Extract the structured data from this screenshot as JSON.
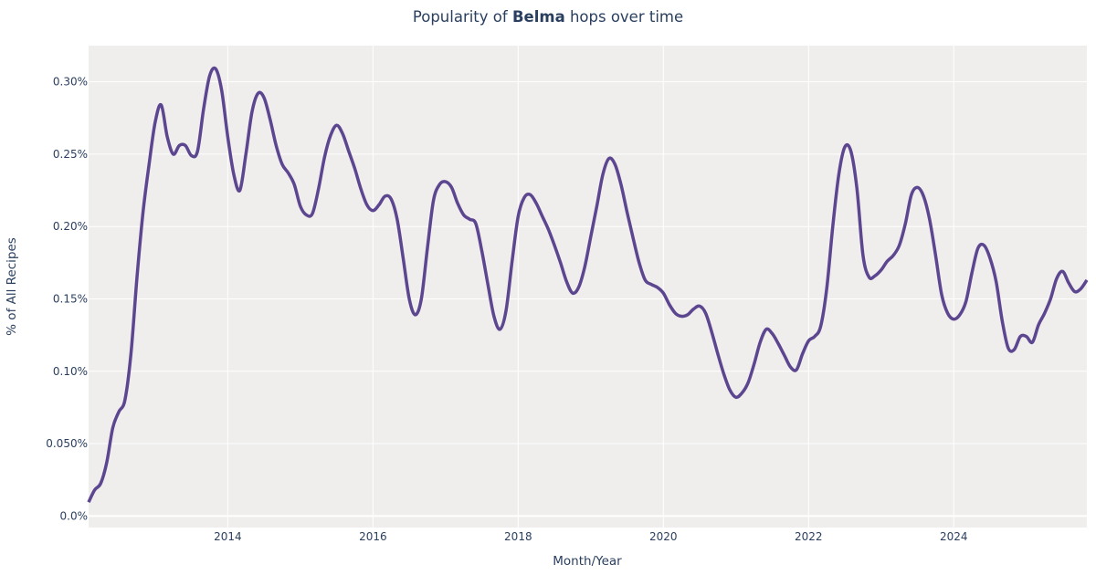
{
  "chart_data": {
    "type": "line",
    "title": {
      "prefix": "Popularity of ",
      "bold": "Belma",
      "suffix": " hops over time"
    },
    "xlabel": "Month/Year",
    "ylabel": "% of All Recipes",
    "xlim": [
      "2012-02",
      "2025-11"
    ],
    "ylim": [
      -0.008,
      0.325
    ],
    "x_ticks": [
      "2014",
      "2016",
      "2018",
      "2020",
      "2022",
      "2024"
    ],
    "y_ticks": [
      0,
      0.05,
      0.1,
      0.15,
      0.2,
      0.25,
      0.3
    ],
    "y_tick_labels": [
      "0.0%",
      "0.050%",
      "0.10%",
      "0.15%",
      "0.20%",
      "0.25%",
      "0.30%"
    ],
    "grid": true,
    "colors": {
      "line": "#5d4690",
      "plot_bg": "#efeeec",
      "grid": "#ffffff",
      "text": "#2a3f5f"
    },
    "series": [
      {
        "start": "2012-02",
        "frequency": "monthly",
        "values": [
          0.0095,
          0.018,
          0.0225,
          0.037,
          0.061,
          0.072,
          0.08,
          0.112,
          0.165,
          0.21,
          0.243,
          0.272,
          0.284,
          0.262,
          0.25,
          0.256,
          0.256,
          0.249,
          0.252,
          0.281,
          0.304,
          0.309,
          0.294,
          0.262,
          0.236,
          0.225,
          0.25,
          0.279,
          0.292,
          0.289,
          0.274,
          0.256,
          0.243,
          0.237,
          0.229,
          0.214,
          0.208,
          0.209,
          0.226,
          0.248,
          0.263,
          0.27,
          0.264,
          0.252,
          0.24,
          0.226,
          0.215,
          0.211,
          0.215,
          0.221,
          0.219,
          0.205,
          0.178,
          0.15,
          0.139,
          0.15,
          0.185,
          0.218,
          0.229,
          0.231,
          0.227,
          0.216,
          0.208,
          0.205,
          0.202,
          0.183,
          0.16,
          0.138,
          0.129,
          0.142,
          0.176,
          0.207,
          0.22,
          0.222,
          0.216,
          0.207,
          0.198,
          0.187,
          0.175,
          0.162,
          0.154,
          0.158,
          0.172,
          0.193,
          0.214,
          0.236,
          0.247,
          0.243,
          0.229,
          0.21,
          0.192,
          0.175,
          0.163,
          0.16,
          0.158,
          0.154,
          0.146,
          0.14,
          0.138,
          0.139,
          0.143,
          0.145,
          0.14,
          0.127,
          0.112,
          0.098,
          0.087,
          0.082,
          0.085,
          0.092,
          0.105,
          0.12,
          0.129,
          0.126,
          0.119,
          0.111,
          0.103,
          0.101,
          0.112,
          0.121,
          0.124,
          0.131,
          0.157,
          0.2,
          0.236,
          0.255,
          0.252,
          0.226,
          0.18,
          0.165,
          0.166,
          0.17,
          0.176,
          0.18,
          0.187,
          0.202,
          0.222,
          0.227,
          0.221,
          0.205,
          0.18,
          0.153,
          0.14,
          0.136,
          0.139,
          0.148,
          0.168,
          0.185,
          0.187,
          0.178,
          0.162,
          0.135,
          0.116,
          0.115,
          0.124,
          0.124,
          0.12,
          0.132,
          0.14,
          0.15,
          0.164,
          0.169,
          0.161,
          0.155,
          0.157,
          0.163
        ]
      }
    ]
  }
}
